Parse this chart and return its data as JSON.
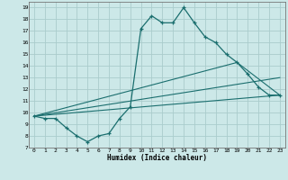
{
  "xlabel": "Humidex (Indice chaleur)",
  "bg_color": "#cce8e8",
  "grid_color": "#aacccc",
  "line_color": "#1a6e6e",
  "xlim": [
    -0.5,
    23.5
  ],
  "ylim": [
    7,
    19.5
  ],
  "xticks": [
    0,
    1,
    2,
    3,
    4,
    5,
    6,
    7,
    8,
    9,
    10,
    11,
    12,
    13,
    14,
    15,
    16,
    17,
    18,
    19,
    20,
    21,
    22,
    23
  ],
  "yticks": [
    7,
    8,
    9,
    10,
    11,
    12,
    13,
    14,
    15,
    16,
    17,
    18,
    19
  ],
  "series1_x": [
    0,
    1,
    2,
    3,
    4,
    5,
    6,
    7,
    8,
    9,
    10,
    11,
    12,
    13,
    14,
    15,
    16,
    17,
    18,
    19,
    20,
    21,
    22,
    23
  ],
  "series1_y": [
    9.7,
    9.5,
    9.5,
    8.7,
    8.0,
    7.5,
    8.0,
    8.2,
    9.5,
    10.5,
    17.2,
    18.3,
    17.7,
    17.7,
    19.0,
    17.7,
    16.5,
    16.0,
    15.0,
    14.3,
    13.3,
    12.2,
    11.5,
    11.5
  ],
  "series2_x": [
    0,
    23
  ],
  "series2_y": [
    9.7,
    11.5
  ],
  "series3_x": [
    0,
    19,
    23
  ],
  "series3_y": [
    9.7,
    14.3,
    11.5
  ],
  "series4_x": [
    0,
    23
  ],
  "series4_y": [
    9.7,
    13.0
  ]
}
